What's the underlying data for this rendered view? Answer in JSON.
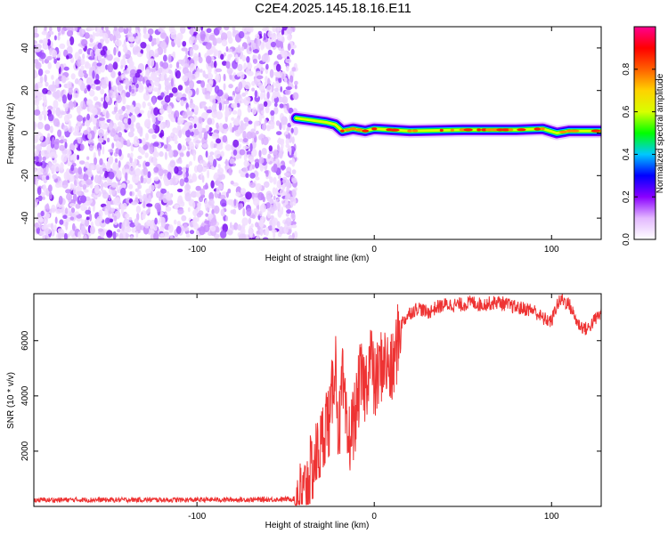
{
  "title": "C2E4.2025.145.18.16.E11",
  "chart_data": [
    {
      "type": "heatmap",
      "xlabel": "Height of straight line (km)",
      "ylabel": "Frequency (Hz)",
      "xlim": [
        -192,
        128
      ],
      "ylim": [
        -50,
        50
      ],
      "x_ticks": [
        -100,
        0,
        100
      ],
      "y_ticks": [
        -40,
        -20,
        0,
        20,
        40
      ],
      "noise_region_x": [
        -192,
        -44
      ],
      "signal_band": [
        {
          "x": -44,
          "y": 7
        },
        {
          "x": -35,
          "y": 6
        },
        {
          "x": -27,
          "y": 5
        },
        {
          "x": -22,
          "y": 4
        },
        {
          "x": -18,
          "y": 1
        },
        {
          "x": -12,
          "y": 2
        },
        {
          "x": -5,
          "y": 1
        },
        {
          "x": 0,
          "y": 2
        },
        {
          "x": 20,
          "y": 1
        },
        {
          "x": 50,
          "y": 1.5
        },
        {
          "x": 80,
          "y": 1.5
        },
        {
          "x": 95,
          "y": 2
        },
        {
          "x": 103,
          "y": 0
        },
        {
          "x": 110,
          "y": 1
        },
        {
          "x": 128,
          "y": 1
        }
      ],
      "colorbar": {
        "label": "Normalized spectral amplitude",
        "range": [
          0,
          1
        ],
        "ticks": [
          "0.0",
          "0.2",
          "0.4",
          "0.6",
          "0.8"
        ],
        "colors": [
          "#ffffff",
          "#e3b8ff",
          "#8a00ff",
          "#0000ff",
          "#00c8ff",
          "#00ff00",
          "#d8ff00",
          "#ffd200",
          "#ff6000",
          "#ff0000",
          "#ff0090"
        ]
      }
    },
    {
      "type": "line",
      "xlabel": "Height of straight line (km)",
      "ylabel": "SNR (10 * v/v)",
      "xlim": [
        -192,
        128
      ],
      "ylim": [
        0,
        7700
      ],
      "x_ticks": [
        -100,
        0,
        100
      ],
      "y_ticks": [
        2000,
        4000,
        6000
      ],
      "color": "#ee3333",
      "x": [
        -192,
        -170,
        -150,
        -130,
        -110,
        -90,
        -70,
        -50,
        -40,
        -35,
        -32,
        -30,
        -27,
        -25,
        -22,
        -20,
        -18,
        -15,
        -12,
        -10,
        -8,
        -5,
        -2,
        0,
        5,
        10,
        15,
        20,
        25,
        30,
        35,
        40,
        50,
        55,
        60,
        70,
        80,
        90,
        95,
        100,
        103,
        106,
        110,
        115,
        120,
        125,
        128
      ],
      "y": [
        230,
        240,
        235,
        240,
        235,
        245,
        245,
        260,
        300,
        1400,
        1900,
        2200,
        3200,
        3000,
        5500,
        2500,
        4500,
        2200,
        3000,
        3500,
        4600,
        4300,
        5600,
        4300,
        5300,
        4800,
        6600,
        7000,
        7200,
        7000,
        7200,
        7300,
        7300,
        7400,
        7300,
        7400,
        7200,
        7100,
        6800,
        6700,
        7300,
        7500,
        7300,
        6600,
        6400,
        6800,
        7000
      ]
    }
  ]
}
